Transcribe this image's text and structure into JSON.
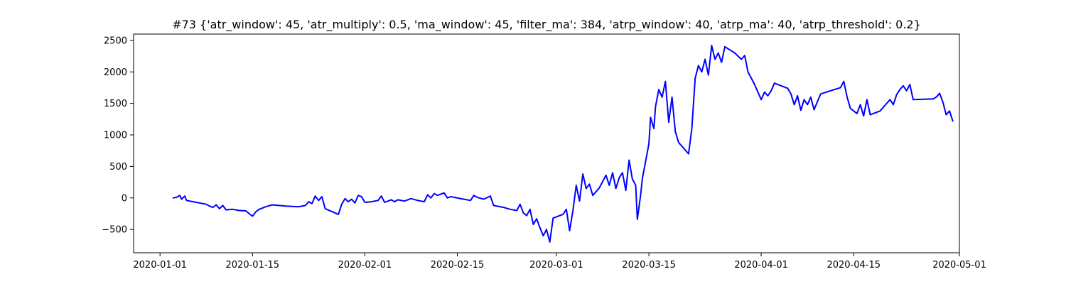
{
  "chart_data": {
    "type": "line",
    "title": "#73 {'atr_window': 45, 'atr_multiply': 0.5, 'ma_window': 45, 'filter_ma': 384, 'atrp_window': 40, 'atrp_ma': 40, 'atrp_threshold': 0.2}",
    "xlabel": "",
    "ylabel": "",
    "x_type": "date",
    "xlim": [
      "2019-12-28",
      "2020-05-01"
    ],
    "ylim": [
      -870,
      2600
    ],
    "grid": false,
    "legend": "none",
    "x_ticks": [
      "2020-01-01",
      "2020-01-15",
      "2020-02-01",
      "2020-02-15",
      "2020-03-01",
      "2020-03-15",
      "2020-04-01",
      "2020-04-15",
      "2020-05-01"
    ],
    "y_ticks": [
      -500,
      0,
      500,
      1000,
      1500,
      2000,
      2500
    ],
    "series": [
      {
        "color": "#0000ff",
        "points": [
          [
            "2020-01-03",
            0
          ],
          [
            "2020-01-03T12:00",
            10
          ],
          [
            "2020-01-04",
            40
          ],
          [
            "2020-01-04T06:00",
            -20
          ],
          [
            "2020-01-04T18:00",
            30
          ],
          [
            "2020-01-05",
            -40
          ],
          [
            "2020-01-06",
            -60
          ],
          [
            "2020-01-08",
            -100
          ],
          [
            "2020-01-08T12:00",
            -130
          ],
          [
            "2020-01-09",
            -150
          ],
          [
            "2020-01-09T12:00",
            -110
          ],
          [
            "2020-01-10",
            -170
          ],
          [
            "2020-01-10T12:00",
            -120
          ],
          [
            "2020-01-11",
            -190
          ],
          [
            "2020-01-12",
            -180
          ],
          [
            "2020-01-13",
            -200
          ],
          [
            "2020-01-14",
            -205
          ],
          [
            "2020-01-14T12:00",
            -250
          ],
          [
            "2020-01-15",
            -290
          ],
          [
            "2020-01-15T12:00",
            -220
          ],
          [
            "2020-01-16",
            -180
          ],
          [
            "2020-01-17",
            -140
          ],
          [
            "2020-01-18",
            -110
          ],
          [
            "2020-01-19",
            -120
          ],
          [
            "2020-01-20",
            -130
          ],
          [
            "2020-01-22",
            -140
          ],
          [
            "2020-01-23",
            -120
          ],
          [
            "2020-01-23T12:00",
            -60
          ],
          [
            "2020-01-24",
            -90
          ],
          [
            "2020-01-24T12:00",
            30
          ],
          [
            "2020-01-25",
            -40
          ],
          [
            "2020-01-25T12:00",
            20
          ],
          [
            "2020-01-26",
            -170
          ],
          [
            "2020-01-28",
            -260
          ],
          [
            "2020-01-28T12:00",
            -100
          ],
          [
            "2020-01-29",
            -10
          ],
          [
            "2020-01-29T12:00",
            -60
          ],
          [
            "2020-01-30",
            -20
          ],
          [
            "2020-01-30T12:00",
            -80
          ],
          [
            "2020-01-31",
            40
          ],
          [
            "2020-01-31T12:00",
            20
          ],
          [
            "2020-02-01",
            -70
          ],
          [
            "2020-02-02",
            -60
          ],
          [
            "2020-02-03",
            -40
          ],
          [
            "2020-02-03T12:00",
            30
          ],
          [
            "2020-02-04",
            -70
          ],
          [
            "2020-02-05",
            -30
          ],
          [
            "2020-02-05T12:00",
            -60
          ],
          [
            "2020-02-06",
            -30
          ],
          [
            "2020-02-07",
            -50
          ],
          [
            "2020-02-08",
            -10
          ],
          [
            "2020-02-09",
            -40
          ],
          [
            "2020-02-10",
            -60
          ],
          [
            "2020-02-10T12:00",
            50
          ],
          [
            "2020-02-11",
            0
          ],
          [
            "2020-02-11T12:00",
            70
          ],
          [
            "2020-02-12",
            40
          ],
          [
            "2020-02-13",
            80
          ],
          [
            "2020-02-13T12:00",
            0
          ],
          [
            "2020-02-14",
            20
          ],
          [
            "2020-02-16",
            -20
          ],
          [
            "2020-02-17",
            -40
          ],
          [
            "2020-02-17T12:00",
            40
          ],
          [
            "2020-02-18",
            10
          ],
          [
            "2020-02-19",
            -20
          ],
          [
            "2020-02-20",
            30
          ],
          [
            "2020-02-20T12:00",
            -120
          ],
          [
            "2020-02-22",
            -150
          ],
          [
            "2020-02-23",
            -180
          ],
          [
            "2020-02-24",
            -200
          ],
          [
            "2020-02-24T12:00",
            -100
          ],
          [
            "2020-02-25",
            -240
          ],
          [
            "2020-02-25T12:00",
            -280
          ],
          [
            "2020-02-26",
            -180
          ],
          [
            "2020-02-26T12:00",
            -420
          ],
          [
            "2020-02-27",
            -330
          ],
          [
            "2020-02-27T12:00",
            -470
          ],
          [
            "2020-02-28",
            -600
          ],
          [
            "2020-02-28T12:00",
            -500
          ],
          [
            "2020-02-29",
            -700
          ],
          [
            "2020-02-29T12:00",
            -320
          ],
          [
            "2020-03-01",
            -300
          ],
          [
            "2020-03-02",
            -260
          ],
          [
            "2020-03-02T12:00",
            -180
          ],
          [
            "2020-03-03",
            -520
          ],
          [
            "2020-03-03T12:00",
            -200
          ],
          [
            "2020-03-04",
            200
          ],
          [
            "2020-03-04T12:00",
            -50
          ],
          [
            "2020-03-05",
            380
          ],
          [
            "2020-03-05T12:00",
            150
          ],
          [
            "2020-03-06",
            220
          ],
          [
            "2020-03-06T12:00",
            40
          ],
          [
            "2020-03-07",
            100
          ],
          [
            "2020-03-07T12:00",
            160
          ],
          [
            "2020-03-08",
            260
          ],
          [
            "2020-03-08T12:00",
            360
          ],
          [
            "2020-03-09",
            200
          ],
          [
            "2020-03-09T12:00",
            400
          ],
          [
            "2020-03-10",
            150
          ],
          [
            "2020-03-10T12:00",
            320
          ],
          [
            "2020-03-11",
            400
          ],
          [
            "2020-03-11T12:00",
            120
          ],
          [
            "2020-03-12",
            600
          ],
          [
            "2020-03-12T12:00",
            300
          ],
          [
            "2020-03-13",
            200
          ],
          [
            "2020-03-13T06:00",
            -340
          ],
          [
            "2020-03-13T18:00",
            50
          ],
          [
            "2020-03-14",
            300
          ],
          [
            "2020-03-15",
            860
          ],
          [
            "2020-03-15T06:00",
            1280
          ],
          [
            "2020-03-15T18:00",
            1100
          ],
          [
            "2020-03-16",
            1450
          ],
          [
            "2020-03-16T12:00",
            1720
          ],
          [
            "2020-03-17",
            1600
          ],
          [
            "2020-03-17T12:00",
            1850
          ],
          [
            "2020-03-18",
            1200
          ],
          [
            "2020-03-18T12:00",
            1600
          ],
          [
            "2020-03-19",
            1050
          ],
          [
            "2020-03-19T12:00",
            880
          ],
          [
            "2020-03-21",
            700
          ],
          [
            "2020-03-21T12:00",
            1100
          ],
          [
            "2020-03-22",
            1900
          ],
          [
            "2020-03-22T12:00",
            2100
          ],
          [
            "2020-03-23",
            2000
          ],
          [
            "2020-03-23T12:00",
            2200
          ],
          [
            "2020-03-24",
            1950
          ],
          [
            "2020-03-24T12:00",
            2420
          ],
          [
            "2020-03-25",
            2200
          ],
          [
            "2020-03-25T12:00",
            2300
          ],
          [
            "2020-03-26",
            2150
          ],
          [
            "2020-03-26T12:00",
            2400
          ],
          [
            "2020-03-28",
            2300
          ],
          [
            "2020-03-29",
            2200
          ],
          [
            "2020-03-29T12:00",
            2260
          ],
          [
            "2020-03-30",
            2000
          ],
          [
            "2020-03-30T12:00",
            1900
          ],
          [
            "2020-03-31",
            1800
          ],
          [
            "2020-04-01",
            1560
          ],
          [
            "2020-04-01T12:00",
            1680
          ],
          [
            "2020-04-02",
            1620
          ],
          [
            "2020-04-02T12:00",
            1700
          ],
          [
            "2020-04-03",
            1820
          ],
          [
            "2020-04-05",
            1740
          ],
          [
            "2020-04-05T12:00",
            1650
          ],
          [
            "2020-04-06",
            1480
          ],
          [
            "2020-04-06T12:00",
            1620
          ],
          [
            "2020-04-07",
            1390
          ],
          [
            "2020-04-07T12:00",
            1560
          ],
          [
            "2020-04-08",
            1480
          ],
          [
            "2020-04-08T12:00",
            1600
          ],
          [
            "2020-04-09",
            1400
          ],
          [
            "2020-04-10",
            1650
          ],
          [
            "2020-04-13",
            1750
          ],
          [
            "2020-04-13T12:00",
            1850
          ],
          [
            "2020-04-14",
            1600
          ],
          [
            "2020-04-14T12:00",
            1420
          ],
          [
            "2020-04-15",
            1380
          ],
          [
            "2020-04-15T12:00",
            1340
          ],
          [
            "2020-04-16",
            1480
          ],
          [
            "2020-04-16T12:00",
            1300
          ],
          [
            "2020-04-17",
            1560
          ],
          [
            "2020-04-17T12:00",
            1320
          ],
          [
            "2020-04-19",
            1380
          ],
          [
            "2020-04-20",
            1500
          ],
          [
            "2020-04-20T12:00",
            1560
          ],
          [
            "2020-04-21",
            1480
          ],
          [
            "2020-04-21T12:00",
            1640
          ],
          [
            "2020-04-22",
            1720
          ],
          [
            "2020-04-22T12:00",
            1780
          ],
          [
            "2020-04-23",
            1700
          ],
          [
            "2020-04-23T12:00",
            1800
          ],
          [
            "2020-04-24",
            1560
          ],
          [
            "2020-04-27",
            1570
          ],
          [
            "2020-04-27T12:00",
            1600
          ],
          [
            "2020-04-28",
            1660
          ],
          [
            "2020-04-28T12:00",
            1520
          ],
          [
            "2020-04-29",
            1320
          ],
          [
            "2020-04-29T12:00",
            1380
          ],
          [
            "2020-04-30",
            1220
          ]
        ]
      }
    ]
  }
}
